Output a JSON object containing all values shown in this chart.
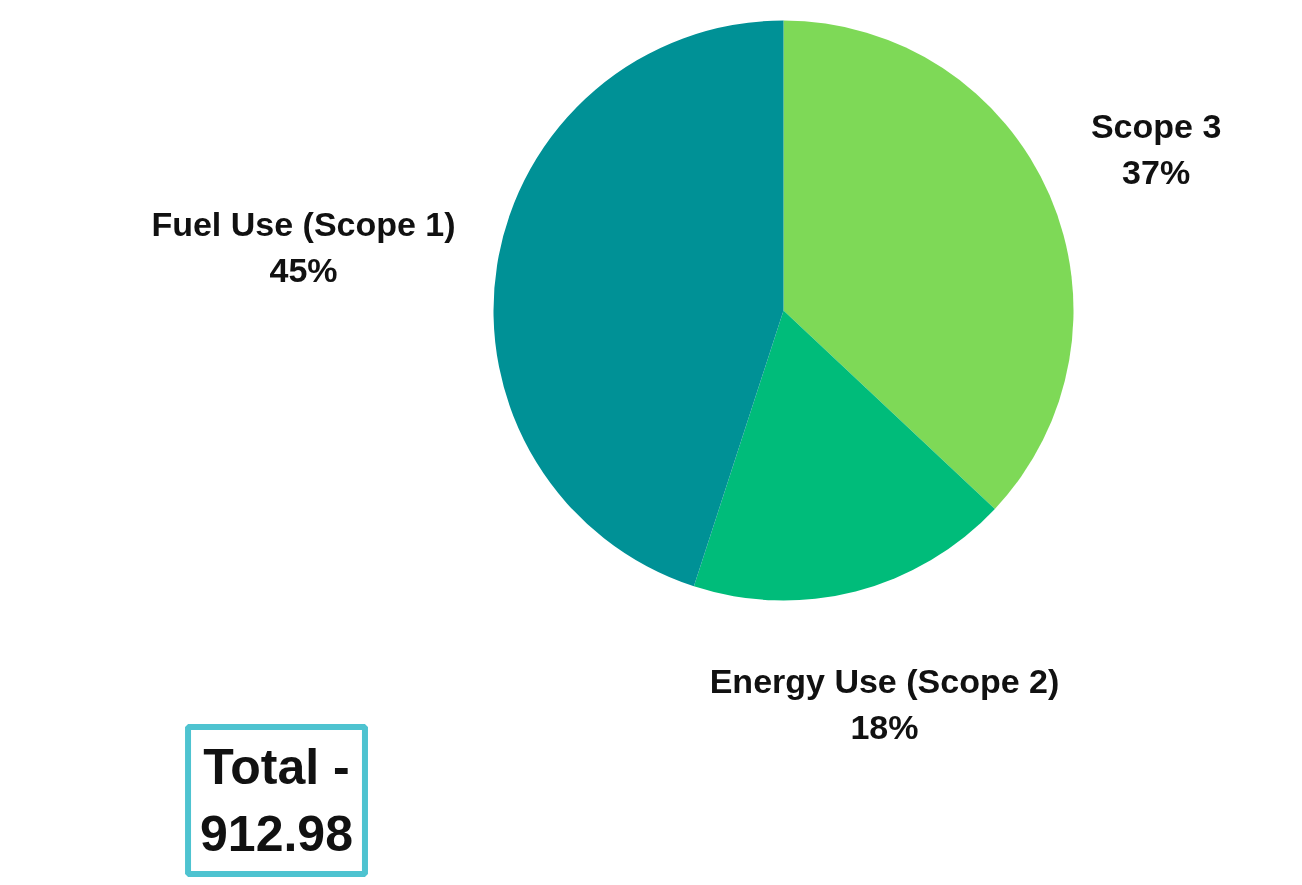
{
  "chart_data": {
    "type": "pie",
    "categories": [
      "Scope 3",
      "Energy Use (Scope 2)",
      "Fuel Use (Scope 1)"
    ],
    "values": [
      37,
      18,
      45
    ],
    "colors": [
      "#7ed957",
      "#00bc7a",
      "#009196"
    ],
    "value_labels": [
      "37%",
      "18%",
      "45%"
    ],
    "annotations": [
      "Total - 912.98"
    ]
  }
}
